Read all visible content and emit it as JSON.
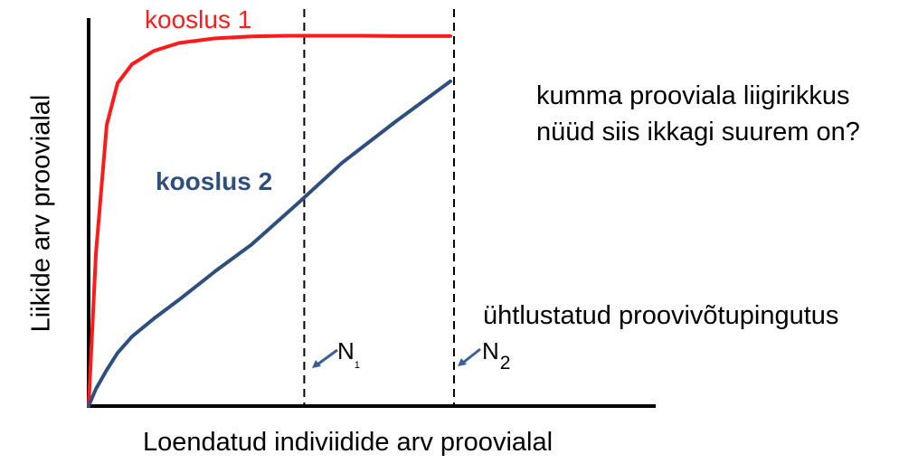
{
  "chart_data": {
    "type": "line",
    "xlabel": "Loendatud indiviidide arv proovialal",
    "ylabel": "Liikide arv proovialal",
    "series": [
      {
        "name": "kooslus 1",
        "color": "#ff1a1a",
        "points": [
          [
            0,
            0
          ],
          [
            2,
            40
          ],
          [
            5,
            74
          ],
          [
            8,
            85
          ],
          [
            12,
            90
          ],
          [
            18,
            93.5
          ],
          [
            25,
            95.6
          ],
          [
            35,
            96.8
          ],
          [
            45,
            97.3
          ],
          [
            55,
            97.5
          ],
          [
            65,
            97.5
          ],
          [
            75,
            97.5
          ],
          [
            85,
            97.4
          ],
          [
            100,
            97.4
          ]
        ]
      },
      {
        "name": "kooslus 2",
        "color": "#2f4e80",
        "points": [
          [
            0,
            0
          ],
          [
            2,
            4.5
          ],
          [
            5,
            9.5
          ],
          [
            8,
            14
          ],
          [
            12,
            18.3
          ],
          [
            18,
            23
          ],
          [
            25,
            28
          ],
          [
            35,
            35.5
          ],
          [
            45,
            42.5
          ],
          [
            58,
            53.5
          ],
          [
            70,
            64
          ],
          [
            85,
            75
          ],
          [
            100,
            85.5
          ]
        ]
      }
    ],
    "markers": [
      {
        "name": "N1",
        "x": 58.6,
        "label_base": "N",
        "label_sub": "1"
      },
      {
        "name": "N2",
        "x": 100,
        "label_base": "N",
        "label_sub": "2"
      }
    ],
    "annotations": {
      "question": [
        "kumma prooviala liigirikkus",
        "nüüd siis ikkagi suurem on?"
      ],
      "effort": "ühtlustatud proovivõtupingutus"
    }
  }
}
